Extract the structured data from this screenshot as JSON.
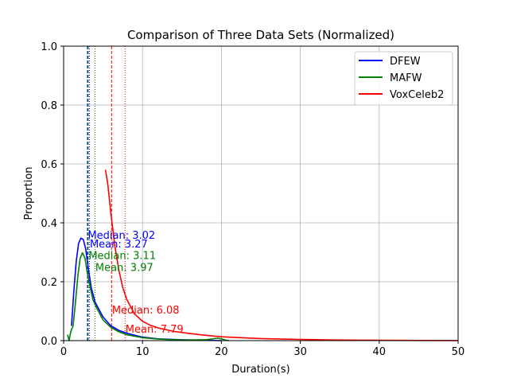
{
  "chart_data": {
    "type": "line",
    "title": "Comparison of Three Data Sets (Normalized)",
    "xlabel": "Duration(s)",
    "ylabel": "Proportion",
    "xlim": [
      0,
      50
    ],
    "ylim": [
      0,
      1.0
    ],
    "x_ticks": [
      "0",
      "10",
      "20",
      "30",
      "40",
      "50"
    ],
    "y_ticks": [
      "0.0",
      "0.2",
      "0.4",
      "0.6",
      "0.8",
      "1.0"
    ],
    "grid": true,
    "legend_position": "top-right",
    "series": [
      {
        "name": "DFEW",
        "color": "#0000ff",
        "x": [
          1.0,
          1.3,
          1.6,
          1.9,
          2.2,
          2.5,
          2.8,
          3.1,
          3.5,
          4.0,
          5.0,
          6.0,
          7.0,
          8.0,
          10.0,
          12.0,
          15.0,
          18.0,
          20.0
        ],
        "y": [
          0.05,
          0.17,
          0.27,
          0.33,
          0.348,
          0.343,
          0.31,
          0.25,
          0.18,
          0.13,
          0.08,
          0.05,
          0.035,
          0.025,
          0.012,
          0.006,
          0.003,
          0.001,
          0.0
        ],
        "median": 3.02,
        "mean": 3.27,
        "median_label": "Median: 3.02",
        "mean_label": "Mean: 3.27"
      },
      {
        "name": "MAFW",
        "color": "#008000",
        "x": [
          0.5,
          0.7,
          0.9,
          1.2,
          1.5,
          1.8,
          2.1,
          2.4,
          2.7,
          3.0,
          3.3,
          3.7,
          4.2,
          5.0,
          6.0,
          7.0,
          8.0,
          10.0,
          12.0,
          15.0,
          18.0,
          19.5,
          20.0,
          20.5,
          21.0
        ],
        "y": [
          0.02,
          0.0,
          0.03,
          0.05,
          0.13,
          0.22,
          0.28,
          0.298,
          0.28,
          0.23,
          0.19,
          0.14,
          0.11,
          0.07,
          0.045,
          0.03,
          0.02,
          0.01,
          0.005,
          0.002,
          0.003,
          0.008,
          0.006,
          0.002,
          0.0
        ],
        "median": 3.11,
        "mean": 3.97,
        "median_label": "Median: 3.11",
        "mean_label": "Mean: 3.97"
      },
      {
        "name": "VoxCeleb2",
        "color": "#ff0000",
        "x": [
          5.3,
          5.6,
          6.0,
          6.5,
          7.0,
          7.5,
          8.0,
          9.0,
          10.0,
          11.0,
          12.0,
          14.0,
          16.0,
          18.0,
          20.0,
          25.0,
          30.0,
          35.0,
          40.0,
          45.0,
          50.0
        ],
        "y": [
          0.58,
          0.53,
          0.43,
          0.32,
          0.24,
          0.18,
          0.14,
          0.09,
          0.066,
          0.052,
          0.043,
          0.031,
          0.024,
          0.018,
          0.013,
          0.007,
          0.004,
          0.002,
          0.001,
          0.0005,
          0.0002
        ],
        "median": 6.08,
        "mean": 7.79,
        "median_label": "Median: 6.08",
        "mean_label": "Mean: 7.79"
      }
    ]
  }
}
